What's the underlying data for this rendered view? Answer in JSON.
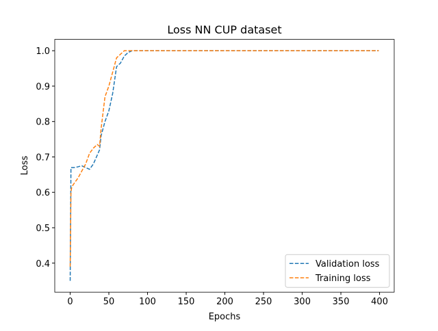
{
  "chart_data": {
    "type": "line",
    "title": "Loss NN CUP dataset",
    "x_label": "Epochs",
    "y_label": "Loss",
    "x": [
      0,
      1,
      2,
      5,
      10,
      15,
      20,
      25,
      30,
      35,
      38,
      40,
      45,
      50,
      55,
      60,
      65,
      70,
      75,
      80,
      90,
      100,
      200,
      300,
      399
    ],
    "series": [
      {
        "name": "Validation loss",
        "color": "#1f77b4",
        "values": [
          0.35,
          0.67,
          0.67,
          0.67,
          0.672,
          0.675,
          0.67,
          0.665,
          0.68,
          0.705,
          0.72,
          0.76,
          0.8,
          0.83,
          0.88,
          0.955,
          0.965,
          0.985,
          0.995,
          1.0,
          1.0,
          1.0,
          1.0,
          1.0,
          1.0
        ]
      },
      {
        "name": "Training loss",
        "color": "#ff7f0e",
        "values": [
          0.39,
          0.6,
          0.615,
          0.625,
          0.64,
          0.66,
          0.68,
          0.71,
          0.725,
          0.735,
          0.73,
          0.78,
          0.87,
          0.9,
          0.94,
          0.98,
          0.99,
          1.0,
          1.0,
          1.0,
          1.0,
          1.0,
          1.0,
          1.0,
          1.0
        ]
      }
    ],
    "xlim": [
      -19.95,
      418.95
    ],
    "ylim": [
      0.318,
      1.032
    ],
    "xticks": [
      0,
      50,
      100,
      150,
      200,
      250,
      300,
      350,
      400
    ],
    "yticks": [
      {
        "value": 0.4,
        "label": "0.4"
      },
      {
        "value": 0.5,
        "label": "0.5"
      },
      {
        "value": 0.6,
        "label": "0.6"
      },
      {
        "value": 0.7,
        "label": "0.7"
      },
      {
        "value": 0.8,
        "label": "0.8"
      },
      {
        "value": 0.9,
        "label": "0.9"
      },
      {
        "value": 1.0,
        "label": "1.0"
      }
    ],
    "legend": "lower right",
    "line_style": "dashed"
  }
}
